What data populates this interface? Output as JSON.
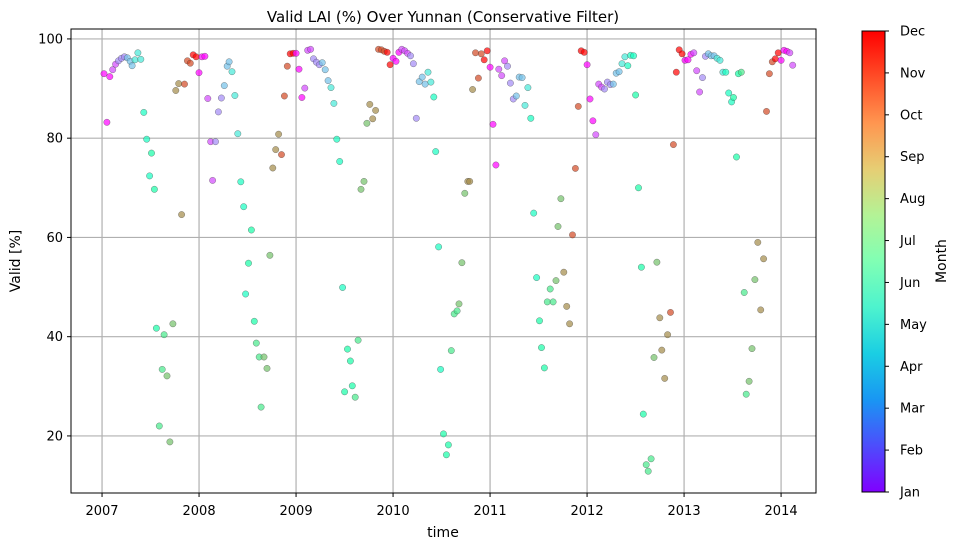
{
  "chart_data": {
    "type": "scatter",
    "title": "Valid LAI (%) Over Yunnan (Conservative Filter)",
    "xlabel": "time",
    "ylabel": "Valid [%]",
    "xlim": [
      2006.68,
      2014.36
    ],
    "ylim": [
      8.5,
      102
    ],
    "x_ticks": [
      2007,
      2008,
      2009,
      2010,
      2011,
      2012,
      2013,
      2014
    ],
    "y_ticks": [
      20,
      40,
      60,
      80,
      100
    ],
    "grid": true,
    "color_encoding": "month",
    "colorbar": {
      "label": "Month",
      "ticks": [
        "Jan",
        "Feb",
        "Mar",
        "Apr",
        "May",
        "Jun",
        "Jul",
        "Aug",
        "Sep",
        "Oct",
        "Nov",
        "Dec"
      ],
      "colormap": "rainbow"
    },
    "points": [
      [
        2007.02,
        93
      ],
      [
        2007.05,
        83.2
      ],
      [
        2007.08,
        92.4
      ],
      [
        2007.11,
        93.8
      ],
      [
        2007.14,
        94.9
      ],
      [
        2007.17,
        95.6
      ],
      [
        2007.2,
        96.1
      ],
      [
        2007.23,
        96.4
      ],
      [
        2007.26,
        96.2
      ],
      [
        2007.29,
        95.5
      ],
      [
        2007.31,
        94.6
      ],
      [
        2007.34,
        95.8
      ],
      [
        2007.37,
        97.2
      ],
      [
        2007.4,
        95.9
      ],
      [
        2007.43,
        85.2
      ],
      [
        2007.46,
        79.8
      ],
      [
        2007.49,
        72.4
      ],
      [
        2007.51,
        77
      ],
      [
        2007.54,
        69.7
      ],
      [
        2007.56,
        41.7
      ],
      [
        2007.59,
        22
      ],
      [
        2007.62,
        33.4
      ],
      [
        2007.64,
        40.4
      ],
      [
        2007.67,
        32.1
      ],
      [
        2007.7,
        18.8
      ],
      [
        2007.73,
        42.6
      ],
      [
        2007.76,
        89.6
      ],
      [
        2007.79,
        91
      ],
      [
        2007.82,
        64.6
      ],
      [
        2007.85,
        90.9
      ],
      [
        2007.88,
        95.6
      ],
      [
        2007.91,
        95.1
      ],
      [
        2007.94,
        96.8
      ],
      [
        2007.97,
        96.4
      ],
      [
        2008.0,
        93.2
      ],
      [
        2008.03,
        96.4
      ],
      [
        2008.06,
        96.5
      ],
      [
        2008.09,
        88
      ],
      [
        2008.12,
        79.3
      ],
      [
        2008.14,
        71.5
      ],
      [
        2008.17,
        79.3
      ],
      [
        2008.2,
        85.3
      ],
      [
        2008.23,
        88.1
      ],
      [
        2008.26,
        90.6
      ],
      [
        2008.29,
        94.5
      ],
      [
        2008.31,
        95.4
      ],
      [
        2008.34,
        93.4
      ],
      [
        2008.37,
        88.6
      ],
      [
        2008.4,
        80.9
      ],
      [
        2008.43,
        71.2
      ],
      [
        2008.46,
        66.2
      ],
      [
        2008.48,
        48.6
      ],
      [
        2008.51,
        54.8
      ],
      [
        2008.54,
        61.5
      ],
      [
        2008.57,
        43.1
      ],
      [
        2008.59,
        38.7
      ],
      [
        2008.62,
        35.9
      ],
      [
        2008.64,
        25.8
      ],
      [
        2008.67,
        35.9
      ],
      [
        2008.7,
        33.6
      ],
      [
        2008.73,
        56.4
      ],
      [
        2008.76,
        74
      ],
      [
        2008.79,
        77.7
      ],
      [
        2008.82,
        80.8
      ],
      [
        2008.85,
        76.7
      ],
      [
        2008.88,
        88.5
      ],
      [
        2008.91,
        94.5
      ],
      [
        2008.94,
        97
      ],
      [
        2008.97,
        97.1
      ],
      [
        2009.0,
        97.1
      ],
      [
        2009.03,
        93.9
      ],
      [
        2009.06,
        88.2
      ],
      [
        2009.09,
        90.1
      ],
      [
        2009.12,
        97.7
      ],
      [
        2009.15,
        97.9
      ],
      [
        2009.18,
        96
      ],
      [
        2009.21,
        95.3
      ],
      [
        2009.24,
        94.8
      ],
      [
        2009.27,
        95.2
      ],
      [
        2009.3,
        93.8
      ],
      [
        2009.33,
        91.6
      ],
      [
        2009.36,
        90.2
      ],
      [
        2009.39,
        87
      ],
      [
        2009.42,
        79.8
      ],
      [
        2009.45,
        75.3
      ],
      [
        2009.48,
        49.9
      ],
      [
        2009.5,
        28.9
      ],
      [
        2009.53,
        37.5
      ],
      [
        2009.56,
        35.1
      ],
      [
        2009.58,
        30.1
      ],
      [
        2009.61,
        27.8
      ],
      [
        2009.64,
        39.3
      ],
      [
        2009.67,
        69.7
      ],
      [
        2009.7,
        71.3
      ],
      [
        2009.73,
        83
      ],
      [
        2009.76,
        86.8
      ],
      [
        2009.79,
        83.9
      ],
      [
        2009.82,
        85.6
      ],
      [
        2009.85,
        97.9
      ],
      [
        2009.88,
        97.8
      ],
      [
        2009.91,
        97.5
      ],
      [
        2009.94,
        97.3
      ],
      [
        2009.97,
        94.8
      ],
      [
        2010.0,
        96.1
      ],
      [
        2010.03,
        95.5
      ],
      [
        2010.06,
        97.3
      ],
      [
        2010.09,
        97.9
      ],
      [
        2010.12,
        97.6
      ],
      [
        2010.15,
        97.1
      ],
      [
        2010.18,
        96.6
      ],
      [
        2010.21,
        95
      ],
      [
        2010.24,
        84
      ],
      [
        2010.27,
        91.4
      ],
      [
        2010.3,
        92.3
      ],
      [
        2010.33,
        90.9
      ],
      [
        2010.36,
        93.3
      ],
      [
        2010.39,
        91.3
      ],
      [
        2010.42,
        88.3
      ],
      [
        2010.44,
        77.3
      ],
      [
        2010.47,
        58.1
      ],
      [
        2010.49,
        33.4
      ],
      [
        2010.52,
        20.4
      ],
      [
        2010.55,
        16.2
      ],
      [
        2010.57,
        18.2
      ],
      [
        2010.6,
        37.2
      ],
      [
        2010.63,
        44.6
      ],
      [
        2010.66,
        45.2
      ],
      [
        2010.68,
        46.6
      ],
      [
        2010.71,
        54.9
      ],
      [
        2010.74,
        68.9
      ],
      [
        2010.77,
        71.3
      ],
      [
        2010.79,
        71.3
      ],
      [
        2010.82,
        89.8
      ],
      [
        2010.85,
        97.2
      ],
      [
        2010.88,
        92.1
      ],
      [
        2010.91,
        97
      ],
      [
        2010.94,
        95.8
      ],
      [
        2010.97,
        97.6
      ],
      [
        2011.0,
        94.3
      ],
      [
        2011.03,
        82.8
      ],
      [
        2011.06,
        74.6
      ],
      [
        2011.09,
        93.9
      ],
      [
        2011.12,
        92.6
      ],
      [
        2011.15,
        95.6
      ],
      [
        2011.18,
        94.5
      ],
      [
        2011.21,
        91.1
      ],
      [
        2011.24,
        87.9
      ],
      [
        2011.27,
        88.5
      ],
      [
        2011.3,
        92.3
      ],
      [
        2011.33,
        92.2
      ],
      [
        2011.36,
        86.6
      ],
      [
        2011.39,
        90.2
      ],
      [
        2011.42,
        84
      ],
      [
        2011.45,
        64.9
      ],
      [
        2011.48,
        51.9
      ],
      [
        2011.51,
        43.2
      ],
      [
        2011.53,
        37.8
      ],
      [
        2011.56,
        33.7
      ],
      [
        2011.59,
        47
      ],
      [
        2011.62,
        49.6
      ],
      [
        2011.65,
        47
      ],
      [
        2011.68,
        51.3
      ],
      [
        2011.7,
        62.2
      ],
      [
        2011.73,
        67.8
      ],
      [
        2011.76,
        53
      ],
      [
        2011.79,
        46.1
      ],
      [
        2011.82,
        42.6
      ],
      [
        2011.85,
        60.5
      ],
      [
        2011.88,
        73.9
      ],
      [
        2011.91,
        86.4
      ],
      [
        2011.94,
        97.6
      ],
      [
        2011.97,
        97.3
      ],
      [
        2012.0,
        94.8
      ],
      [
        2012.03,
        87.9
      ],
      [
        2012.06,
        83.5
      ],
      [
        2012.09,
        80.7
      ],
      [
        2012.12,
        90.9
      ],
      [
        2012.15,
        90.3
      ],
      [
        2012.18,
        89.9
      ],
      [
        2012.21,
        91.3
      ],
      [
        2012.24,
        90.8
      ],
      [
        2012.27,
        90.9
      ],
      [
        2012.3,
        93.1
      ],
      [
        2012.33,
        93.4
      ],
      [
        2012.36,
        95
      ],
      [
        2012.39,
        96.4
      ],
      [
        2012.42,
        94.6
      ],
      [
        2012.45,
        96.7
      ],
      [
        2012.48,
        96.6
      ],
      [
        2012.5,
        88.7
      ],
      [
        2012.53,
        70
      ],
      [
        2012.56,
        54
      ],
      [
        2012.58,
        24.4
      ],
      [
        2012.61,
        14.2
      ],
      [
        2012.63,
        12.9
      ],
      [
        2012.66,
        15.4
      ],
      [
        2012.69,
        35.8
      ],
      [
        2012.72,
        55
      ],
      [
        2012.75,
        43.8
      ],
      [
        2012.77,
        37.3
      ],
      [
        2012.8,
        31.6
      ],
      [
        2012.83,
        40.4
      ],
      [
        2012.86,
        44.9
      ],
      [
        2012.89,
        78.7
      ],
      [
        2012.92,
        93.3
      ],
      [
        2012.95,
        97.8
      ],
      [
        2012.98,
        97
      ],
      [
        2013.01,
        95.7
      ],
      [
        2013.04,
        95.8
      ],
      [
        2013.07,
        96.9
      ],
      [
        2013.1,
        97.2
      ],
      [
        2013.13,
        93.6
      ],
      [
        2013.16,
        89.3
      ],
      [
        2013.19,
        92.2
      ],
      [
        2013.22,
        96.5
      ],
      [
        2013.25,
        97
      ],
      [
        2013.28,
        96.6
      ],
      [
        2013.31,
        96.6
      ],
      [
        2013.34,
        96.1
      ],
      [
        2013.37,
        95.7
      ],
      [
        2013.4,
        93.3
      ],
      [
        2013.43,
        93.3
      ],
      [
        2013.46,
        89.1
      ],
      [
        2013.49,
        87.3
      ],
      [
        2013.51,
        88.2
      ],
      [
        2013.54,
        76.2
      ],
      [
        2013.56,
        93
      ],
      [
        2013.59,
        93.3
      ],
      [
        2013.62,
        48.9
      ],
      [
        2013.64,
        28.4
      ],
      [
        2013.67,
        31
      ],
      [
        2013.7,
        37.6
      ],
      [
        2013.73,
        51.5
      ],
      [
        2013.76,
        59
      ],
      [
        2013.79,
        45.4
      ],
      [
        2013.82,
        55.7
      ],
      [
        2013.85,
        85.4
      ],
      [
        2013.88,
        93
      ],
      [
        2013.91,
        95.4
      ],
      [
        2013.94,
        96
      ],
      [
        2013.97,
        97.2
      ],
      [
        2014.0,
        95.7
      ],
      [
        2014.03,
        97.7
      ],
      [
        2014.06,
        97.5
      ],
      [
        2014.09,
        97.2
      ],
      [
        2014.12,
        94.7
      ]
    ]
  }
}
